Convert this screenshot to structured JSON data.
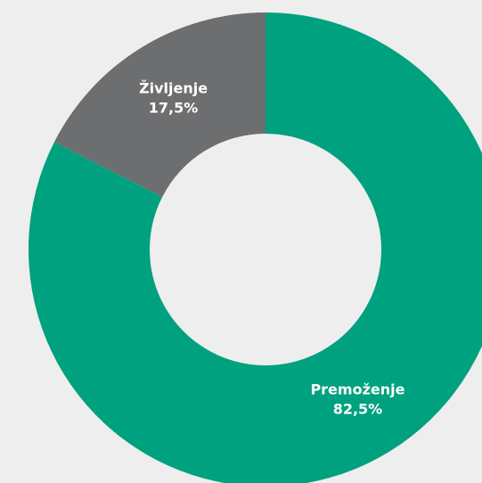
{
  "chart_data": {
    "type": "donut",
    "categories": [
      "Premoženje",
      "Življenje"
    ],
    "values": [
      82.5,
      17.5
    ],
    "value_labels": [
      "82,5%",
      "17,5%"
    ],
    "colors": [
      "#00a17f",
      "#6d6e70"
    ]
  }
}
